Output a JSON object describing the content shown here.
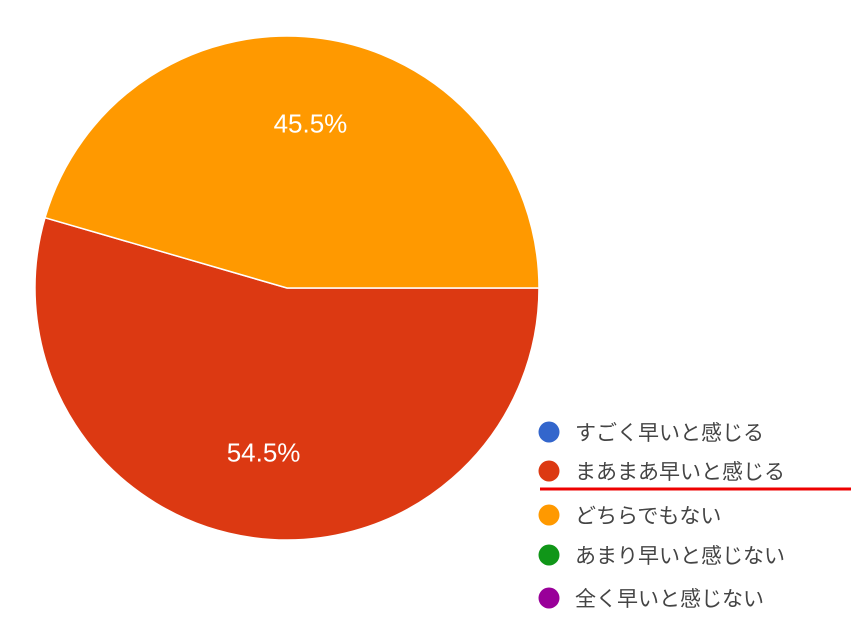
{
  "chart_data": {
    "type": "pie",
    "legend_position": "bottom-right",
    "slices": [
      {
        "label": "すごく早いと感じる",
        "value": 0,
        "color": "#3366cc"
      },
      {
        "label": "まあまあ早いと感じる",
        "value": 54.5,
        "color": "#dc3912",
        "data_label": "54.5%"
      },
      {
        "label": "どちらでもない",
        "value": 45.5,
        "color": "#ff9900",
        "data_label": "45.5%"
      },
      {
        "label": "あまり早いと感じない",
        "value": 0,
        "color": "#109618"
      },
      {
        "label": "全く早いと感じない",
        "value": 0,
        "color": "#990099"
      }
    ],
    "highlight": {
      "item": "まあまあ早いと感じる",
      "style": "red underline",
      "color": "#ee0000"
    }
  }
}
